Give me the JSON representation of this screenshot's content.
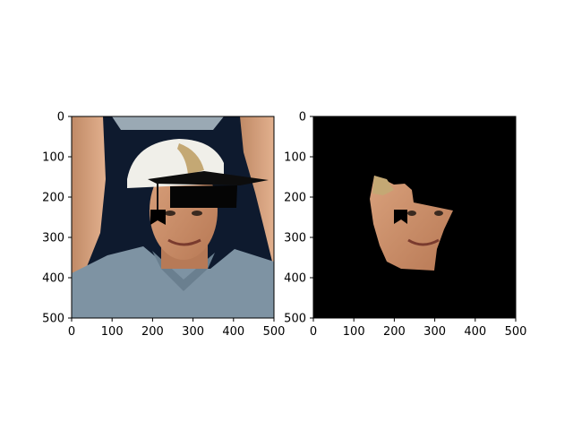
{
  "chart_data": [
    {
      "type": "image",
      "content": "photo-with-graduation-cap-overlay",
      "xlim": [
        0,
        500
      ],
      "ylim": [
        500,
        0
      ],
      "xticks": [
        0,
        100,
        200,
        300,
        400,
        500
      ],
      "yticks": [
        0,
        100,
        200,
        300,
        400,
        500
      ],
      "xtick_labels": [
        "0",
        "100",
        "200",
        "300",
        "400",
        "500"
      ],
      "ytick_labels": [
        "0",
        "100",
        "200",
        "300",
        "400",
        "500"
      ],
      "title": "",
      "xlabel": "",
      "ylabel": "",
      "grid": false
    },
    {
      "type": "image",
      "content": "segmented-face-on-black-background",
      "xlim": [
        0,
        500
      ],
      "ylim": [
        500,
        0
      ],
      "xticks": [
        0,
        100,
        200,
        300,
        400,
        500
      ],
      "yticks": [
        0,
        100,
        200,
        300,
        400,
        500
      ],
      "xtick_labels": [
        "0",
        "100",
        "200",
        "300",
        "400",
        "500"
      ],
      "ytick_labels": [
        "0",
        "100",
        "200",
        "300",
        "400",
        "500"
      ],
      "title": "",
      "xlabel": "",
      "ylabel": "",
      "grid": false
    }
  ],
  "colors": {
    "background_dark": "#0e1a2e",
    "shirt": "#7e93a3",
    "skin": "#c98d6a",
    "hair": "#c4a874",
    "cap_white": "#f0efe9",
    "black": "#000000"
  }
}
